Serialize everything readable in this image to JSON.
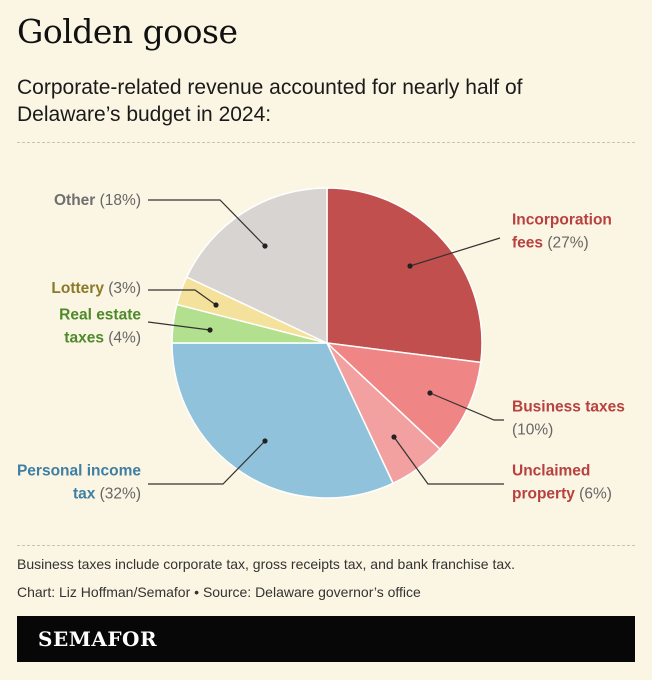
{
  "chart_data": {
    "type": "pie",
    "title": "Golden goose",
    "subtitle": "Corporate-related revenue accounted for nearly half of Delaware’s budget in 2024:",
    "slices": [
      {
        "name": "Incorporation fees",
        "label_lines": [
          "Incorporation",
          "fees"
        ],
        "pct_text": "(27%)",
        "value": 27,
        "color": "#c14f4d",
        "text_color": "#b8413f"
      },
      {
        "name": "Business taxes",
        "label_lines": [
          "Business taxes"
        ],
        "pct_text": "(10%)",
        "pct_newline": true,
        "value": 10,
        "color": "#f08585",
        "text_color": "#b8413f"
      },
      {
        "name": "Unclaimed property",
        "label_lines": [
          "Unclaimed",
          "property"
        ],
        "pct_text": "(6%)",
        "value": 6,
        "color": "#f3a0a0",
        "text_color": "#b8413f"
      },
      {
        "name": "Personal income tax",
        "label_lines": [
          "Personal income",
          "tax"
        ],
        "pct_text": "(32%)",
        "value": 32,
        "color": "#90c2db",
        "text_color": "#3e7fa3"
      },
      {
        "name": "Real estate taxes",
        "label_lines": [
          "Real estate",
          "taxes"
        ],
        "pct_text": "(4%)",
        "value": 4,
        "color": "#b2e08f",
        "text_color": "#4e8a2a"
      },
      {
        "name": "Lottery",
        "label_lines": [
          "Lottery"
        ],
        "pct_text": "(3%)",
        "value": 3,
        "color": "#f4e19b",
        "text_color": "#8a7a2a"
      },
      {
        "name": "Other",
        "label_lines": [
          "Other"
        ],
        "pct_text": "(18%)",
        "value": 18,
        "color": "#d7d4d1",
        "text_color": "#6f6f6f"
      }
    ]
  },
  "footnote": "Business taxes include corporate tax, gross receipts tax, and bank franchise tax.",
  "credit": "Chart: Liz Hoffman/Semafor • Source: Delaware governor’s office",
  "brand": "SEMAFOR"
}
